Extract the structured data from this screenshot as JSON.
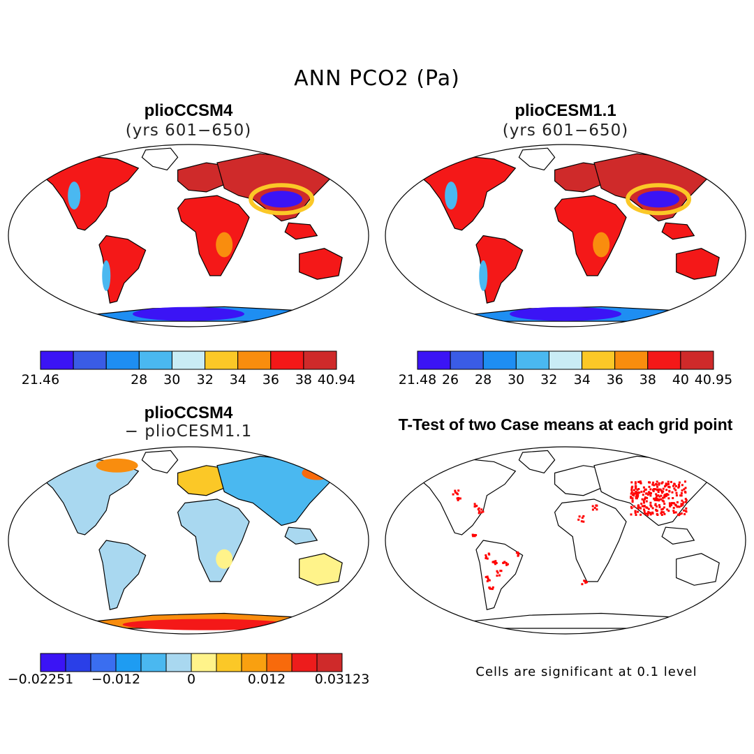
{
  "title": "ANN PCO2 (Pa)",
  "panels": {
    "tl": {
      "title": "plioCCSM4",
      "subtitle": "(yrs 601−650)"
    },
    "tr": {
      "title": "plioCESM1.1",
      "subtitle": "(yrs 601−650)"
    },
    "bl": {
      "title": "plioCCSM4",
      "subtitle": "− plioCESM1.1"
    },
    "br": {
      "title": "T-Test of two Case means at each grid point",
      "note": "Cells are significant at 0.1 level"
    }
  },
  "colorbars": {
    "tl": {
      "colors": [
        "#3b14f5",
        "#3a5ce6",
        "#1e8ef2",
        "#4ab8f0",
        "#c9ecf5",
        "#fbc827",
        "#f98d0e",
        "#f41818",
        "#cf2a2a"
      ],
      "labels": [
        "21.46",
        "28",
        "30",
        "32",
        "34",
        "36",
        "38",
        "40.94"
      ]
    },
    "tr": {
      "colors": [
        "#3b14f5",
        "#3a5ce6",
        "#1e8ef2",
        "#4ab8f0",
        "#c9ecf5",
        "#fbc827",
        "#f98d0e",
        "#f41818",
        "#cf2a2a"
      ],
      "labels": [
        "21.48",
        "26",
        "28",
        "30",
        "32",
        "34",
        "36",
        "38",
        "40",
        "40.95"
      ]
    },
    "bl": {
      "colors": [
        "#3b14f5",
        "#2a3fe8",
        "#3a6ef0",
        "#1e9cf2",
        "#4ab8f0",
        "#a9d8f0",
        "#fff38a",
        "#fbc827",
        "#f9a010",
        "#f86a0c",
        "#ed1c1c",
        "#cf2a2a"
      ],
      "labels": [
        "−0.02251",
        "−0.012",
        "0",
        "0.012",
        "0.03123"
      ]
    }
  },
  "legend_colors": {
    "significant": "#ff0000",
    "land_high": "#f41818",
    "land_mid": "#fbc827",
    "land_low": "#3b14f5",
    "diff_neg": "#a9d8f0",
    "diff_pos": "#fbc827"
  }
}
